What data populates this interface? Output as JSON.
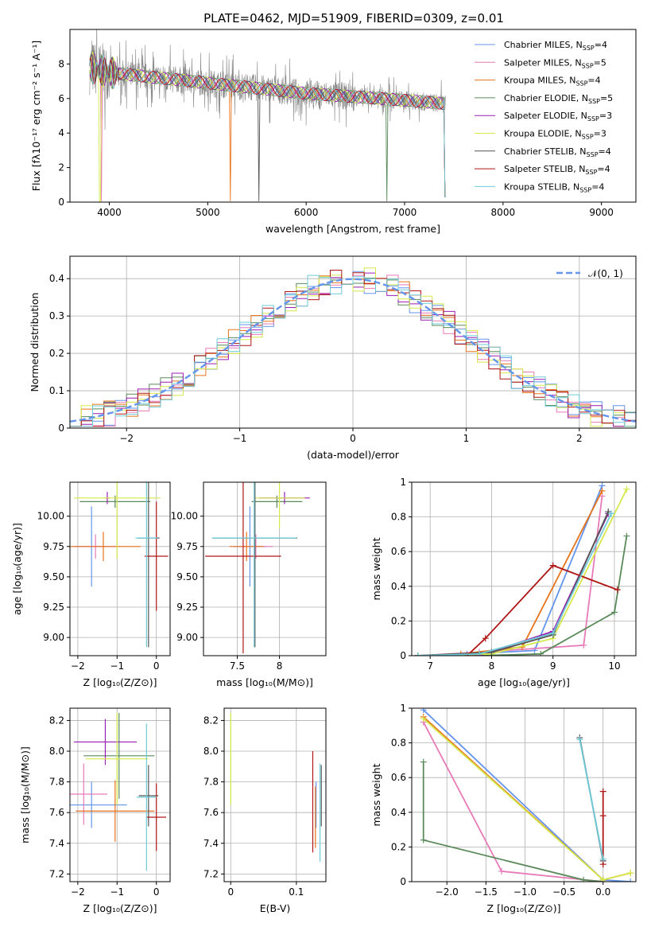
{
  "title": "PLATE=0462, MJD=51909, FIBERID=0309, z=0.01",
  "colors": [
    "#6495ED",
    "#E87AB8",
    "#E8731B",
    "#5A8A5A",
    "#9A1FB0",
    "#D4E84A",
    "#555555",
    "#B01818",
    "#6ECBD8"
  ],
  "chart_data": [
    {
      "id": "spectrum",
      "type": "line",
      "xlabel": "wavelength [Angstrom, rest frame]",
      "ylabel": "Flux [f_λ 10^-17 erg cm^-2 s^-1 A^-1]",
      "xlim": [
        3600,
        9350
      ],
      "ylim": [
        0,
        10
      ],
      "xticks": [
        4000,
        5000,
        6000,
        7000,
        8000,
        9000
      ],
      "yticks": [
        0,
        2,
        4,
        6,
        8
      ],
      "data_range": [
        3800,
        7420
      ],
      "continuum": {
        "x": [
          3800,
          4000,
          4500,
          5000,
          5500,
          6000,
          6500,
          7000,
          7420
        ],
        "y": [
          7.8,
          7.5,
          7.2,
          6.9,
          6.6,
          6.3,
          6.1,
          5.9,
          5.7
        ]
      },
      "legend": [
        {
          "label": "Chabrier MILES, N",
          "sub": "SSP",
          "suffix": "=4"
        },
        {
          "label": "Salpeter MILES, N",
          "sub": "SSP",
          "suffix": "=5"
        },
        {
          "label": "Kroupa MILES, N",
          "sub": "SSP",
          "suffix": "=4"
        },
        {
          "label": "Chabrier ELODIE, N",
          "sub": "SSP",
          "suffix": "=5"
        },
        {
          "label": "Salpeter ELODIE, N",
          "sub": "SSP",
          "suffix": "=3"
        },
        {
          "label": "Kroupa ELODIE, N",
          "sub": "SSP",
          "suffix": "=3"
        },
        {
          "label": "Chabrier STELIB, N",
          "sub": "SSP",
          "suffix": "=4"
        },
        {
          "label": "Salpeter STELIB, N",
          "sub": "SSP",
          "suffix": "=4"
        },
        {
          "label": "Kroupa STELIB, N",
          "sub": "SSP",
          "suffix": "=4"
        }
      ],
      "legend_position": "top-right",
      "grid": false
    },
    {
      "id": "residuals",
      "type": "histogram",
      "xlabel": "(data-model)/error",
      "ylabel": "Normed distribution",
      "xlim": [
        -2.5,
        2.5
      ],
      "ylim": [
        0,
        0.46
      ],
      "xticks": [
        -2,
        -1,
        0,
        1,
        2
      ],
      "yticks": [
        0.0,
        0.1,
        0.2,
        0.3,
        0.4
      ],
      "bin_width": 0.1,
      "reference": {
        "label": "N(0,1)",
        "mu": 0,
        "sigma": 1
      },
      "legend_position": "top-right",
      "grid": true
    },
    {
      "id": "age_vs_Z",
      "type": "scatter",
      "xlabel": "Z [log10(Z/Z_sun)]",
      "ylabel": "age [log10(age/yr)]",
      "xlim": [
        -2.2,
        0.35
      ],
      "ylim": [
        8.85,
        10.28
      ],
      "xticks": [
        -2,
        -1,
        0
      ],
      "yticks": [
        9.0,
        9.25,
        9.5,
        9.75,
        10.0
      ],
      "ytick_labels": [
        "9.00",
        "9.25",
        "9.50",
        "9.75",
        "10.00"
      ],
      "points": [
        {
          "x": -1.65,
          "y": 9.75,
          "xerr": 0.45,
          "yerr": 0.33,
          "c": 0
        },
        {
          "x": -1.55,
          "y": 9.75,
          "xerr": 0.55,
          "yerr": 0.1,
          "c": 1
        },
        {
          "x": -1.35,
          "y": 9.75,
          "xerr": 0.95,
          "yerr": 0.12,
          "c": 2
        },
        {
          "x": -1.05,
          "y": 10.12,
          "xerr": 0.9,
          "yerr": 0.05,
          "c": 3
        },
        {
          "x": -1.25,
          "y": 10.15,
          "xerr": 0.05,
          "yerr": 0.05,
          "c": 4
        },
        {
          "x": -1.0,
          "y": 10.15,
          "xerr": 1.1,
          "yerr": 0.5,
          "c": 5
        },
        {
          "x": -0.2,
          "y": 9.82,
          "xerr": 0.28,
          "yerr": 0.9,
          "c": 6
        },
        {
          "x": 0.0,
          "y": 9.67,
          "xerr": 0.3,
          "yerr": 0.45,
          "c": 7
        },
        {
          "x": -0.25,
          "y": 9.82,
          "xerr": 0.28,
          "yerr": 0.9,
          "c": 8
        }
      ],
      "grid": true
    },
    {
      "id": "age_vs_mass",
      "type": "scatter",
      "xlabel": "mass [log10(M/M_sun)]",
      "ylabel": "",
      "xlim": [
        7.1,
        8.55
      ],
      "ylim": [
        8.85,
        10.28
      ],
      "xticks": [
        7.5,
        8.0
      ],
      "yticks": [
        9.0,
        9.25,
        9.5,
        9.75,
        10.0
      ],
      "ytick_labels": [
        "9.00",
        "9.25",
        "9.50",
        "9.75",
        "10.00"
      ],
      "points": [
        {
          "x": 7.65,
          "y": 9.75,
          "xerr": 0.2,
          "yerr": 0.33,
          "c": 0
        },
        {
          "x": 7.72,
          "y": 9.75,
          "xerr": 0.2,
          "yerr": 0.1,
          "c": 1
        },
        {
          "x": 7.61,
          "y": 9.75,
          "xerr": 0.2,
          "yerr": 0.12,
          "c": 2
        },
        {
          "x": 7.97,
          "y": 10.12,
          "xerr": 0.3,
          "yerr": 0.05,
          "c": 3
        },
        {
          "x": 8.06,
          "y": 10.15,
          "xerr": 0.3,
          "yerr": 0.05,
          "c": 4
        },
        {
          "x": 8.0,
          "y": 10.15,
          "xerr": 0.3,
          "yerr": 0.25,
          "c": 5
        },
        {
          "x": 7.71,
          "y": 9.82,
          "xerr": 0.5,
          "yerr": 0.9,
          "c": 6
        },
        {
          "x": 7.57,
          "y": 9.67,
          "xerr": 0.45,
          "yerr": 0.8,
          "c": 7
        },
        {
          "x": 7.7,
          "y": 9.82,
          "xerr": 0.5,
          "yerr": 0.9,
          "c": 8
        }
      ],
      "grid": true
    },
    {
      "id": "weight_vs_age",
      "type": "line",
      "xlabel": "age [log10(age/yr)]",
      "ylabel": "mass weight",
      "xlim": [
        6.7,
        10.35
      ],
      "ylim": [
        0,
        1.0
      ],
      "xticks": [
        7,
        8,
        9,
        10
      ],
      "yticks": [
        0.0,
        0.2,
        0.4,
        0.6,
        0.8,
        1.0
      ],
      "series": [
        {
          "c": 0,
          "x": [
            6.8,
            7.6,
            8.7,
            9.8
          ],
          "y": [
            0.0,
            0.01,
            0.03,
            0.98
          ]
        },
        {
          "c": 1,
          "x": [
            6.8,
            7.8,
            9.5,
            9.8
          ],
          "y": [
            0.0,
            0.02,
            0.06,
            0.92
          ]
        },
        {
          "c": 2,
          "x": [
            6.8,
            7.5,
            8.5,
            9.8
          ],
          "y": [
            0.0,
            0.01,
            0.05,
            0.95
          ]
        },
        {
          "c": 3,
          "x": [
            6.8,
            7.8,
            8.8,
            10.0,
            10.2
          ],
          "y": [
            0.0,
            0.0,
            0.01,
            0.25,
            0.69
          ]
        },
        {
          "c": 4,
          "x": [
            6.8,
            7.8,
            9.0,
            9.9
          ],
          "y": [
            0.0,
            0.0,
            0.14,
            0.82
          ]
        },
        {
          "c": 5,
          "x": [
            6.8,
            8.0,
            9.0,
            10.2
          ],
          "y": [
            0.0,
            0.01,
            0.1,
            0.96
          ]
        },
        {
          "c": 6,
          "x": [
            6.8,
            8.0,
            9.0,
            9.9
          ],
          "y": [
            0.0,
            0.02,
            0.12,
            0.83
          ]
        },
        {
          "c": 7,
          "x": [
            7.6,
            7.9,
            9.0,
            10.05
          ],
          "y": [
            0.0,
            0.1,
            0.52,
            0.38
          ]
        },
        {
          "c": 8,
          "x": [
            6.8,
            7.8,
            9.0,
            9.95
          ],
          "y": [
            0.0,
            0.01,
            0.13,
            0.82
          ]
        }
      ],
      "grid": true
    },
    {
      "id": "mass_vs_Z",
      "type": "scatter",
      "xlabel": "Z [log10(Z/Z_sun)]",
      "ylabel": "mass [log10(M/M_sun)]",
      "xlim": [
        -2.2,
        0.35
      ],
      "ylim": [
        7.15,
        8.28
      ],
      "xticks": [
        -2,
        -1,
        0
      ],
      "yticks": [
        7.2,
        7.4,
        7.6,
        7.8,
        8.0,
        8.2
      ],
      "ytick_labels": [
        "7.2",
        "7.4",
        "7.6",
        "7.8",
        "8.0",
        "8.2"
      ],
      "points": [
        {
          "x": -1.65,
          "y": 7.65,
          "xerr": 0.9,
          "yerr": 0.15,
          "c": 0
        },
        {
          "x": -1.85,
          "y": 7.72,
          "xerr": 0.6,
          "yerr": 0.2,
          "c": 1
        },
        {
          "x": -1.05,
          "y": 7.61,
          "xerr": 1.0,
          "yerr": 0.2,
          "c": 2
        },
        {
          "x": -0.95,
          "y": 7.97,
          "xerr": 0.9,
          "yerr": 0.28,
          "c": 3
        },
        {
          "x": -1.3,
          "y": 8.06,
          "xerr": 0.8,
          "yerr": 0.15,
          "c": 4
        },
        {
          "x": -1.0,
          "y": 7.95,
          "xerr": 0.8,
          "yerr": 0.3,
          "c": 5
        },
        {
          "x": -0.2,
          "y": 7.71,
          "xerr": 0.25,
          "yerr": 0.2,
          "c": 6
        },
        {
          "x": 0.0,
          "y": 7.57,
          "xerr": 0.25,
          "yerr": 0.22,
          "c": 7
        },
        {
          "x": -0.25,
          "y": 7.7,
          "xerr": 0.25,
          "yerr": 0.48,
          "c": 8
        }
      ],
      "grid": true
    },
    {
      "id": "mass_vs_EBV",
      "type": "scatter",
      "xlabel": "E(B-V)",
      "ylabel": "",
      "xlim": [
        -0.01,
        0.145
      ],
      "ylim": [
        7.15,
        8.28
      ],
      "xticks": [
        0.0,
        0.1
      ],
      "yticks": [
        7.2,
        7.4,
        7.6,
        7.8,
        8.0,
        8.2
      ],
      "ytick_labels": [
        "7.2",
        "7.4",
        "7.6",
        "7.8",
        "8.0",
        "8.2"
      ],
      "points": [
        {
          "x": 0.13,
          "y": 7.65,
          "xerr": 0,
          "yerr": 0.15,
          "c": 0
        },
        {
          "x": 0.129,
          "y": 7.57,
          "xerr": 0,
          "yerr": 0.2,
          "c": 2
        },
        {
          "x": 0.0,
          "y": 7.95,
          "xerr": 0,
          "yerr": 0.3,
          "c": 5
        },
        {
          "x": 0.138,
          "y": 7.71,
          "xerr": 0,
          "yerr": 0.2,
          "c": 6
        },
        {
          "x": 0.125,
          "y": 7.67,
          "xerr": 0,
          "yerr": 0.33,
          "c": 7
        },
        {
          "x": 0.136,
          "y": 7.6,
          "xerr": 0,
          "yerr": 0.32,
          "c": 8
        }
      ],
      "grid": true
    },
    {
      "id": "weight_vs_Z",
      "type": "line",
      "xlabel": "Z [log10(Z/Z_sun)]",
      "ylabel": "mass weight",
      "xlim": [
        -2.45,
        0.42
      ],
      "ylim": [
        0,
        1.0
      ],
      "xticks": [
        -2.0,
        -1.5,
        -1.0,
        -0.5,
        0.0
      ],
      "xtick_labels": [
        "−2.0",
        "−1.5",
        "−1.0",
        "−0.5",
        "0.0"
      ],
      "yticks": [
        0.0,
        0.2,
        0.4,
        0.6,
        0.8,
        1.0
      ],
      "series": [
        {
          "c": 0,
          "x": [
            -2.3,
            0.0,
            0.35
          ],
          "y": [
            0.99,
            0.01,
            0.0
          ]
        },
        {
          "c": 1,
          "x": [
            -2.3,
            -1.3,
            0.0
          ],
          "y": [
            0.92,
            0.06,
            0.0
          ]
        },
        {
          "c": 2,
          "x": [
            -2.3,
            0.0,
            0.35
          ],
          "y": [
            0.95,
            0.01,
            0.05
          ]
        },
        {
          "c": 3,
          "x": [
            -2.3,
            -2.3,
            -0.25,
            0.0
          ],
          "y": [
            0.69,
            0.24,
            0.01,
            0.0
          ]
        },
        {
          "c": 5,
          "x": [
            -2.3,
            0.0,
            0.35
          ],
          "y": [
            0.94,
            0.01,
            0.05
          ]
        },
        {
          "c": 6,
          "x": [
            -0.3,
            0.0
          ],
          "y": [
            0.83,
            0.12
          ]
        },
        {
          "c": 7,
          "x": [
            0.0,
            0.0,
            0.0
          ],
          "y": [
            0.52,
            0.38,
            0.1
          ]
        },
        {
          "c": 8,
          "x": [
            -0.3,
            0.0
          ],
          "y": [
            0.82,
            0.13
          ]
        }
      ],
      "grid": true
    }
  ]
}
